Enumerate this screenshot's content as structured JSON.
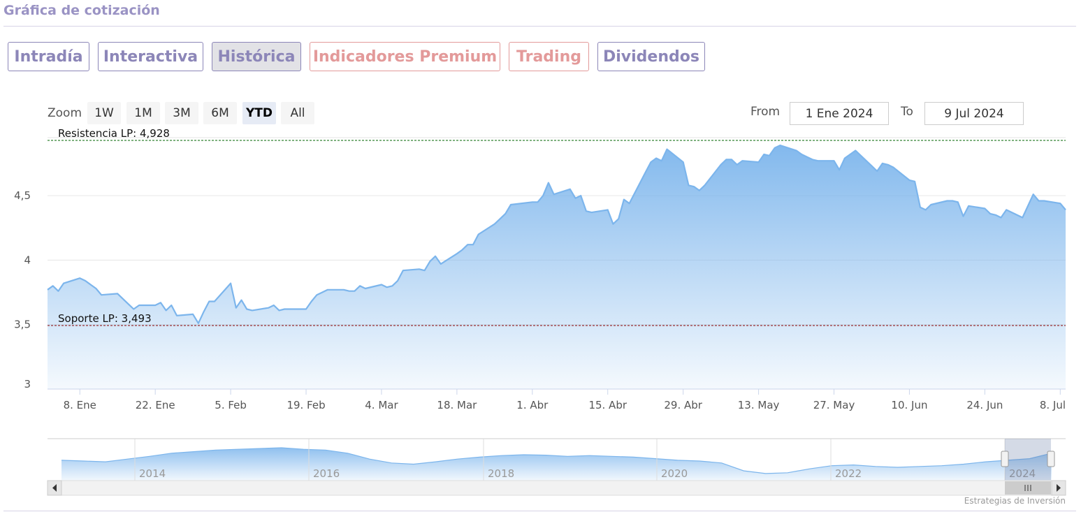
{
  "section": {
    "title": "Gráfica de cotización"
  },
  "tabs": [
    {
      "label": "Intradía"
    },
    {
      "label": "Interactiva"
    },
    {
      "label": "Histórica"
    },
    {
      "label": "Indicadores Premium"
    },
    {
      "label": "Trading"
    },
    {
      "label": "Dividendos"
    }
  ],
  "zoom": {
    "label": "Zoom",
    "buttons": [
      "1W",
      "1M",
      "3M",
      "6M",
      "YTD",
      "All"
    ],
    "selected": "YTD"
  },
  "range": {
    "from_label": "From",
    "from_value": "1 Ene 2024",
    "to_label": "To",
    "to_value": "9 Jul 2024"
  },
  "credit": "Estrategias de Inversión",
  "colors": {
    "line": "#7cb5ec",
    "support": "#8b0000",
    "resistance": "#006400",
    "accent": "#8c86b8",
    "premium": "#e39a9a"
  },
  "chart_data": {
    "type": "area",
    "title": "",
    "xlabel": "",
    "ylabel": "",
    "ylim": [
      3,
      4.95
    ],
    "yticks": [
      3,
      3.5,
      4,
      4.5
    ],
    "ytick_labels": [
      "3",
      "3,5",
      "4",
      "4,5"
    ],
    "xticks": [
      "8. Ene",
      "22. Ene",
      "5. Feb",
      "19. Feb",
      "4. Mar",
      "18. Mar",
      "1. Abr",
      "15. Abr",
      "29. Abr",
      "13. May",
      "27. May",
      "10. Jun",
      "24. Jun",
      "8. Jul"
    ],
    "grid": true,
    "reference_lines": [
      {
        "label": "Resistencia LP: 4,928",
        "value": 4.928
      },
      {
        "label": "Soporte LP: 3,493",
        "value": 3.493
      }
    ],
    "series": [
      {
        "x": [
          "2024-01-02",
          "2024-01-03",
          "2024-01-04",
          "2024-01-05",
          "2024-01-08",
          "2024-01-09",
          "2024-01-10",
          "2024-01-11",
          "2024-01-12",
          "2024-01-15",
          "2024-01-16",
          "2024-01-17",
          "2024-01-18",
          "2024-01-19",
          "2024-01-22",
          "2024-01-23",
          "2024-01-24",
          "2024-01-25",
          "2024-01-26",
          "2024-01-29",
          "2024-01-30",
          "2024-01-31",
          "2024-02-01",
          "2024-02-02",
          "2024-02-05",
          "2024-02-06",
          "2024-02-07",
          "2024-02-08",
          "2024-02-09",
          "2024-02-12",
          "2024-02-13",
          "2024-02-14",
          "2024-02-15",
          "2024-02-16",
          "2024-02-19",
          "2024-02-20",
          "2024-02-21",
          "2024-02-22",
          "2024-02-23",
          "2024-02-26",
          "2024-02-27",
          "2024-02-28",
          "2024-02-29",
          "2024-03-01",
          "2024-03-04",
          "2024-03-05",
          "2024-03-06",
          "2024-03-07",
          "2024-03-08",
          "2024-03-11",
          "2024-03-12",
          "2024-03-13",
          "2024-03-14",
          "2024-03-15",
          "2024-03-18",
          "2024-03-19",
          "2024-03-20",
          "2024-03-21",
          "2024-03-22",
          "2024-03-25",
          "2024-03-26",
          "2024-03-27",
          "2024-03-28",
          "2024-04-01",
          "2024-04-02",
          "2024-04-03",
          "2024-04-04",
          "2024-04-05",
          "2024-04-08",
          "2024-04-09",
          "2024-04-10",
          "2024-04-11",
          "2024-04-12",
          "2024-04-15",
          "2024-04-16",
          "2024-04-17",
          "2024-04-18",
          "2024-04-19",
          "2024-04-22",
          "2024-04-23",
          "2024-04-24",
          "2024-04-25",
          "2024-04-26",
          "2024-04-29",
          "2024-04-30",
          "2024-05-01",
          "2024-05-02",
          "2024-05-03",
          "2024-05-06",
          "2024-05-07",
          "2024-05-08",
          "2024-05-09",
          "2024-05-10",
          "2024-05-13",
          "2024-05-14",
          "2024-05-15",
          "2024-05-16",
          "2024-05-17",
          "2024-05-20",
          "2024-05-21",
          "2024-05-22",
          "2024-05-23",
          "2024-05-24",
          "2024-05-27",
          "2024-05-28",
          "2024-05-29",
          "2024-05-30",
          "2024-05-31",
          "2024-06-03",
          "2024-06-04",
          "2024-06-05",
          "2024-06-06",
          "2024-06-07",
          "2024-06-10",
          "2024-06-11",
          "2024-06-12",
          "2024-06-13",
          "2024-06-14",
          "2024-06-17",
          "2024-06-18",
          "2024-06-19",
          "2024-06-20",
          "2024-06-21",
          "2024-06-24",
          "2024-06-25",
          "2024-06-26",
          "2024-06-27",
          "2024-06-28",
          "2024-07-01",
          "2024-07-02",
          "2024-07-03",
          "2024-07-04",
          "2024-07-05",
          "2024-07-08",
          "2024-07-09"
        ],
        "values": [
          3.77,
          3.8,
          3.76,
          3.82,
          3.86,
          3.84,
          3.81,
          3.78,
          3.73,
          3.74,
          3.7,
          3.66,
          3.62,
          3.65,
          3.65,
          3.67,
          3.61,
          3.65,
          3.57,
          3.58,
          3.51,
          3.6,
          3.68,
          3.68,
          3.82,
          3.63,
          3.69,
          3.62,
          3.61,
          3.63,
          3.65,
          3.61,
          3.62,
          3.62,
          3.62,
          3.68,
          3.73,
          3.75,
          3.77,
          3.77,
          3.76,
          3.76,
          3.8,
          3.78,
          3.81,
          3.79,
          3.8,
          3.84,
          3.92,
          3.93,
          3.92,
          3.99,
          4.03,
          3.97,
          4.05,
          4.08,
          4.12,
          4.12,
          4.2,
          4.28,
          4.32,
          4.36,
          4.43,
          4.45,
          4.45,
          4.5,
          4.6,
          4.51,
          4.55,
          4.48,
          4.5,
          4.38,
          4.37,
          4.39,
          4.28,
          4.32,
          4.47,
          4.44,
          4.68,
          4.76,
          4.79,
          4.77,
          4.86,
          4.76,
          4.58,
          4.57,
          4.54,
          4.58,
          4.74,
          4.78,
          4.78,
          4.74,
          4.77,
          4.76,
          4.82,
          4.81,
          4.87,
          4.89,
          4.85,
          4.82,
          4.8,
          4.78,
          4.77,
          4.77,
          4.7,
          4.79,
          4.82,
          4.85,
          4.73,
          4.69,
          4.75,
          4.74,
          4.72,
          4.62,
          4.61,
          4.41,
          4.39,
          4.43,
          4.46,
          4.46,
          4.45,
          4.34,
          4.42,
          4.4,
          4.36,
          4.35,
          4.33,
          4.39,
          4.33,
          4.42,
          4.51,
          4.46,
          4.46,
          4.44,
          4.39
        ]
      }
    ],
    "navigator": {
      "x_labels": [
        "2014",
        "2016",
        "2018",
        "2020",
        "2022",
        "2024"
      ]
    }
  }
}
